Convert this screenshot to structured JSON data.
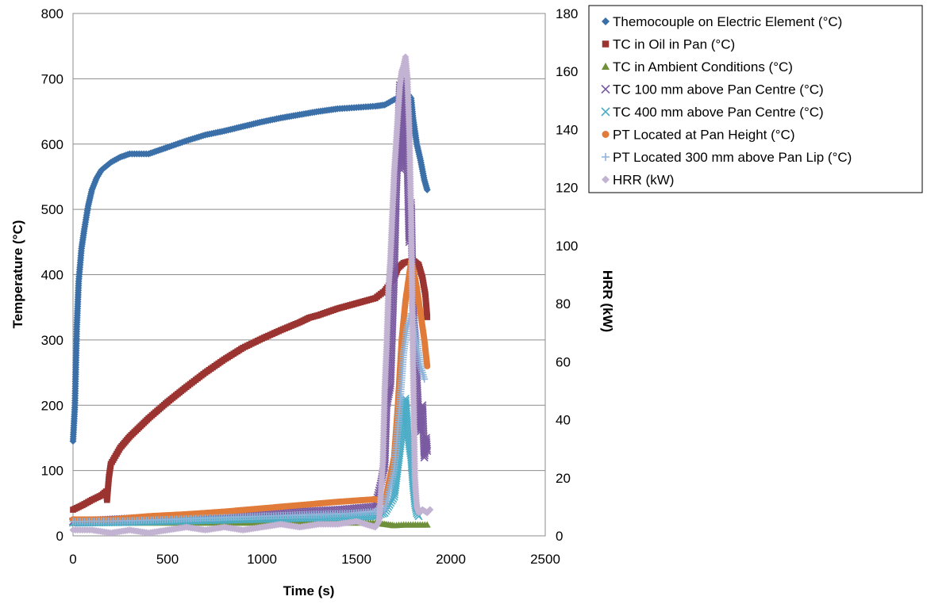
{
  "chart_data": {
    "type": "scatter",
    "xlabel": "Time (s)",
    "ylabel": "Temperature (°C)",
    "y2label": "HRR (kW)",
    "xlim": [
      0,
      2500
    ],
    "ylim": [
      0,
      800
    ],
    "y2lim": [
      0,
      180
    ],
    "xticks": [
      "0",
      "500",
      "1000",
      "1500",
      "2000",
      "2500"
    ],
    "yticks": [
      "0",
      "100",
      "200",
      "300",
      "400",
      "500",
      "600",
      "700",
      "800"
    ],
    "y2ticks": [
      "0",
      "20",
      "40",
      "60",
      "80",
      "100",
      "120",
      "140",
      "160",
      "180"
    ],
    "grid": "horizontal",
    "legend_position": "top-right",
    "series": [
      {
        "name": "Themocouple on Electric Element (°C)",
        "marker": "diamond",
        "color": "#3a6fa8",
        "axis": "left",
        "points": [
          [
            0,
            145
          ],
          [
            10,
            200
          ],
          [
            20,
            320
          ],
          [
            30,
            390
          ],
          [
            45,
            440
          ],
          [
            60,
            470
          ],
          [
            80,
            505
          ],
          [
            100,
            530
          ],
          [
            125,
            548
          ],
          [
            150,
            560
          ],
          [
            200,
            572
          ],
          [
            250,
            580
          ],
          [
            300,
            585
          ],
          [
            350,
            585
          ],
          [
            400,
            585
          ],
          [
            450,
            590
          ],
          [
            500,
            595
          ],
          [
            600,
            605
          ],
          [
            700,
            614
          ],
          [
            800,
            620
          ],
          [
            900,
            627
          ],
          [
            1000,
            634
          ],
          [
            1100,
            640
          ],
          [
            1200,
            645
          ],
          [
            1300,
            650
          ],
          [
            1400,
            654
          ],
          [
            1500,
            656
          ],
          [
            1600,
            658
          ],
          [
            1650,
            660
          ],
          [
            1700,
            668
          ],
          [
            1750,
            675
          ],
          [
            1770,
            678
          ],
          [
            1790,
            670
          ],
          [
            1800,
            640
          ],
          [
            1820,
            600
          ],
          [
            1840,
            575
          ],
          [
            1860,
            545
          ],
          [
            1875,
            530
          ]
        ]
      },
      {
        "name": "TC in Oil in Pan (°C)",
        "marker": "square",
        "color": "#9b3430",
        "axis": "left",
        "points": [
          [
            0,
            40
          ],
          [
            50,
            47
          ],
          [
            100,
            55
          ],
          [
            150,
            62
          ],
          [
            175,
            68
          ],
          [
            180,
            55
          ],
          [
            190,
            90
          ],
          [
            200,
            110
          ],
          [
            250,
            135
          ],
          [
            300,
            152
          ],
          [
            400,
            180
          ],
          [
            500,
            205
          ],
          [
            600,
            228
          ],
          [
            700,
            250
          ],
          [
            800,
            270
          ],
          [
            900,
            288
          ],
          [
            1000,
            302
          ],
          [
            1100,
            315
          ],
          [
            1200,
            327
          ],
          [
            1250,
            334
          ],
          [
            1300,
            338
          ],
          [
            1400,
            348
          ],
          [
            1500,
            356
          ],
          [
            1600,
            364
          ],
          [
            1650,
            375
          ],
          [
            1700,
            395
          ],
          [
            1720,
            410
          ],
          [
            1750,
            418
          ],
          [
            1800,
            422
          ],
          [
            1830,
            415
          ],
          [
            1850,
            395
          ],
          [
            1865,
            370
          ],
          [
            1875,
            335
          ]
        ]
      },
      {
        "name": "TC in Ambient Conditions (°C)",
        "marker": "triangle",
        "color": "#6f8f3a",
        "axis": "left",
        "points": [
          [
            0,
            20
          ],
          [
            300,
            20
          ],
          [
            600,
            20
          ],
          [
            900,
            20
          ],
          [
            1200,
            20
          ],
          [
            1500,
            20
          ],
          [
            1600,
            20
          ],
          [
            1650,
            18
          ],
          [
            1700,
            16
          ],
          [
            1750,
            17
          ],
          [
            1800,
            17
          ],
          [
            1850,
            17
          ],
          [
            1875,
            17
          ]
        ]
      },
      {
        "name": "TC 100 mm above Pan Centre (°C)",
        "marker": "x",
        "color": "#7a5aa0",
        "axis": "left",
        "points": [
          [
            0,
            22
          ],
          [
            200,
            25
          ],
          [
            400,
            28
          ],
          [
            600,
            30
          ],
          [
            800,
            32
          ],
          [
            1000,
            34
          ],
          [
            1200,
            37
          ],
          [
            1400,
            40
          ],
          [
            1600,
            45
          ],
          [
            1630,
            80
          ],
          [
            1650,
            110
          ],
          [
            1660,
            200
          ],
          [
            1680,
            230
          ],
          [
            1700,
            400
          ],
          [
            1710,
            520
          ],
          [
            1720,
            600
          ],
          [
            1730,
            690
          ],
          [
            1740,
            560
          ],
          [
            1750,
            650
          ],
          [
            1760,
            700
          ],
          [
            1770,
            580
          ],
          [
            1780,
            450
          ],
          [
            1790,
            510
          ],
          [
            1800,
            350
          ],
          [
            1810,
            300
          ],
          [
            1820,
            240
          ],
          [
            1830,
            180
          ],
          [
            1840,
            160
          ],
          [
            1850,
            200
          ],
          [
            1860,
            120
          ],
          [
            1870,
            150
          ],
          [
            1875,
            130
          ]
        ]
      },
      {
        "name": "TC 400 mm above Pan Centre (°C)",
        "marker": "x",
        "color": "#4bacc6",
        "axis": "left",
        "points": [
          [
            0,
            20
          ],
          [
            300,
            21
          ],
          [
            600,
            23
          ],
          [
            900,
            25
          ],
          [
            1200,
            27
          ],
          [
            1500,
            29
          ],
          [
            1600,
            30
          ],
          [
            1650,
            35
          ],
          [
            1700,
            60
          ],
          [
            1730,
            130
          ],
          [
            1750,
            180
          ],
          [
            1760,
            210
          ],
          [
            1770,
            170
          ],
          [
            1780,
            140
          ],
          [
            1790,
            120
          ],
          [
            1800,
            80
          ],
          [
            1810,
            50
          ],
          [
            1820,
            35
          ],
          [
            1830,
            30
          ]
        ]
      },
      {
        "name": "PT Located at Pan Height (°C)",
        "marker": "circle",
        "color": "#e07b39",
        "axis": "left",
        "points": [
          [
            0,
            25
          ],
          [
            200,
            25
          ],
          [
            400,
            30
          ],
          [
            600,
            33
          ],
          [
            800,
            37
          ],
          [
            1000,
            42
          ],
          [
            1200,
            47
          ],
          [
            1400,
            52
          ],
          [
            1600,
            56
          ],
          [
            1650,
            50
          ],
          [
            1700,
            120
          ],
          [
            1720,
            200
          ],
          [
            1740,
            300
          ],
          [
            1760,
            360
          ],
          [
            1780,
            400
          ],
          [
            1790,
            420
          ],
          [
            1800,
            410
          ],
          [
            1820,
            380
          ],
          [
            1840,
            340
          ],
          [
            1860,
            300
          ],
          [
            1875,
            260
          ]
        ]
      },
      {
        "name": "PT Located 300 mm above Pan Lip (°C)",
        "marker": "plus",
        "color": "#8fb3d9",
        "axis": "left",
        "points": [
          [
            0,
            22
          ],
          [
            300,
            23
          ],
          [
            600,
            26
          ],
          [
            900,
            29
          ],
          [
            1200,
            32
          ],
          [
            1500,
            35
          ],
          [
            1600,
            37
          ],
          [
            1650,
            40
          ],
          [
            1700,
            100
          ],
          [
            1730,
            200
          ],
          [
            1750,
            280
          ],
          [
            1770,
            320
          ],
          [
            1790,
            340
          ],
          [
            1800,
            335
          ],
          [
            1820,
            300
          ],
          [
            1840,
            260
          ],
          [
            1860,
            240
          ]
        ]
      },
      {
        "name": "HRR (kW)",
        "marker": "diamond",
        "color": "#c3b3d3",
        "axis": "right",
        "points": [
          [
            0,
            2
          ],
          [
            100,
            2
          ],
          [
            200,
            1
          ],
          [
            300,
            2
          ],
          [
            400,
            1
          ],
          [
            500,
            2
          ],
          [
            600,
            3
          ],
          [
            700,
            2
          ],
          [
            800,
            3
          ],
          [
            900,
            2
          ],
          [
            1000,
            3
          ],
          [
            1100,
            4
          ],
          [
            1200,
            3
          ],
          [
            1300,
            4
          ],
          [
            1400,
            4
          ],
          [
            1500,
            5
          ],
          [
            1550,
            4
          ],
          [
            1600,
            3
          ],
          [
            1620,
            5
          ],
          [
            1640,
            25
          ],
          [
            1650,
            50
          ],
          [
            1660,
            65
          ],
          [
            1670,
            85
          ],
          [
            1680,
            95
          ],
          [
            1690,
            110
          ],
          [
            1700,
            125
          ],
          [
            1710,
            135
          ],
          [
            1720,
            145
          ],
          [
            1730,
            155
          ],
          [
            1740,
            160
          ],
          [
            1750,
            162
          ],
          [
            1760,
            165
          ],
          [
            1770,
            158
          ],
          [
            1780,
            140
          ],
          [
            1790,
            110
          ],
          [
            1800,
            60
          ],
          [
            1810,
            20
          ],
          [
            1820,
            10
          ],
          [
            1830,
            8
          ],
          [
            1850,
            9
          ],
          [
            1875,
            8
          ],
          [
            1890,
            9
          ]
        ]
      }
    ]
  }
}
